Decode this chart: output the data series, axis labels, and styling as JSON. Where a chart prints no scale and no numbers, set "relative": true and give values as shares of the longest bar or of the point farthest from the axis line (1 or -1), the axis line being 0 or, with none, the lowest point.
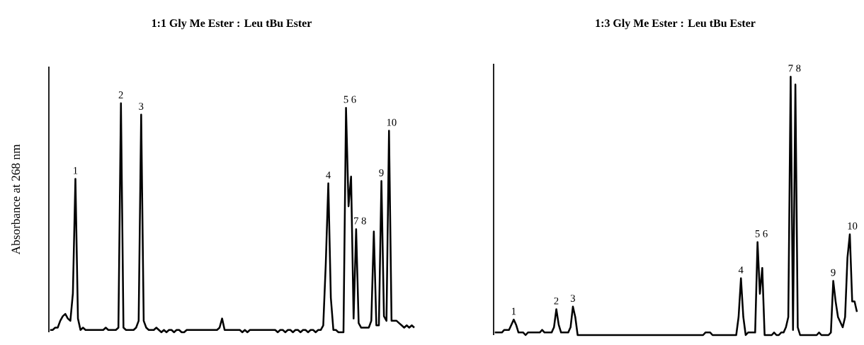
{
  "chart_data": [
    {
      "type": "line",
      "relative": true,
      "title": "1:1 Gly Me Ester : Leu tBu Ester",
      "ylabel": "Absorbance at 268 nm",
      "color": "#000000",
      "categories": [
        null,
        null,
        null,
        null,
        null,
        null,
        null,
        null,
        null,
        null,
        null,
        null,
        null,
        null,
        null,
        null,
        null,
        null,
        null,
        null,
        null,
        null,
        null,
        null,
        null,
        null,
        null,
        null,
        null,
        null,
        null,
        null,
        null,
        null,
        null,
        null,
        null,
        null,
        null,
        null,
        null,
        null,
        null,
        null,
        null,
        null,
        null,
        null,
        null,
        null,
        null,
        null,
        null,
        null,
        null,
        null,
        null,
        null,
        null,
        null,
        null,
        null,
        null,
        null,
        null,
        null,
        null,
        null,
        null,
        null,
        null,
        null,
        null,
        null,
        null,
        null,
        null,
        null,
        null,
        null,
        null,
        null,
        null,
        null,
        null,
        null,
        null,
        null,
        null,
        null,
        null,
        null,
        null,
        null,
        null,
        null,
        null,
        null,
        null,
        null,
        null,
        null,
        null,
        null,
        null,
        null,
        null,
        null,
        null,
        null,
        null,
        null,
        null,
        null,
        null,
        null,
        null,
        null,
        null,
        null,
        null,
        null,
        null,
        null,
        null,
        null,
        null,
        null,
        null,
        null,
        null,
        null,
        null,
        null,
        null,
        null,
        null,
        null,
        null,
        null,
        null,
        null,
        null,
        null,
        null
      ],
      "values": [
        0.01,
        0.01,
        0.02,
        0.02,
        0.05,
        0.07,
        0.08,
        0.06,
        0.05,
        0.17,
        0.67,
        0.06,
        0.01,
        0.02,
        0.01,
        0.01,
        0.01,
        0.01,
        0.01,
        0.01,
        0.01,
        0.01,
        0.02,
        0.01,
        0.01,
        0.01,
        0.01,
        0.02,
        1.0,
        0.02,
        0.01,
        0.01,
        0.01,
        0.01,
        0.02,
        0.05,
        0.95,
        0.05,
        0.02,
        0.01,
        0.01,
        0.01,
        0.02,
        0.01,
        0,
        0.01,
        0,
        0.01,
        0.01,
        0,
        0.01,
        0.01,
        0,
        0,
        0.01,
        0.01,
        0.01,
        0.01,
        0.01,
        0.01,
        0.01,
        0.01,
        0.01,
        0.01,
        0.01,
        0.01,
        0.01,
        0.02,
        0.06,
        0.01,
        0.01,
        0.01,
        0.01,
        0.01,
        0.01,
        0.01,
        0,
        0.01,
        0,
        0.01,
        0.01,
        0.01,
        0.01,
        0.01,
        0.01,
        0.01,
        0.01,
        0.01,
        0.01,
        0.01,
        0,
        0.01,
        0.01,
        0,
        0.01,
        0.01,
        0,
        0.01,
        0.01,
        0,
        0.01,
        0.01,
        0,
        0.01,
        0.01,
        0,
        0.01,
        0.01,
        0.03,
        0.3,
        0.65,
        0.15,
        0.01,
        0.01,
        0,
        0,
        0,
        0.98,
        0.55,
        0.68,
        0.06,
        0.45,
        0.04,
        0.02,
        0.02,
        0.02,
        0.02,
        0.05,
        0.44,
        0.03,
        0.03,
        0.66,
        0.07,
        0.05,
        0.88,
        0.05,
        0.05,
        0.05,
        0.04,
        0.03,
        0.02,
        0.03,
        0.02,
        0.03,
        0.02
      ],
      "annotations": [
        {
          "text": "1",
          "y": 0.67
        },
        {
          "text": "2",
          "y": 1.0
        },
        {
          "text": "3",
          "y": 0.95
        },
        {
          "text": "4",
          "y": 0.65
        },
        {
          "text": "5 6",
          "y": 0.98
        },
        {
          "text": "7 8",
          "y": 0.45
        },
        {
          "text": "9",
          "y": 0.66
        },
        {
          "text": "10",
          "y": 0.88
        }
      ]
    },
    {
      "type": "line",
      "relative": true,
      "title": "1:3 Gly Me Ester : Leu tBu Ester",
      "color": "#000000",
      "categories": [
        null,
        null,
        null,
        null,
        null,
        null,
        null,
        null,
        null,
        null,
        null,
        null,
        null,
        null,
        null,
        null,
        null,
        null,
        null,
        null,
        null,
        null,
        null,
        null,
        null,
        null,
        null,
        null,
        null,
        null,
        null,
        null,
        null,
        null,
        null,
        null,
        null,
        null,
        null,
        null,
        null,
        null,
        null,
        null,
        null,
        null,
        null,
        null,
        null,
        null,
        null,
        null,
        null,
        null,
        null,
        null,
        null,
        null,
        null,
        null,
        null,
        null,
        null,
        null,
        null,
        null,
        null,
        null,
        null,
        null,
        null,
        null,
        null,
        null,
        null,
        null,
        null,
        null,
        null,
        null,
        null,
        null,
        null,
        null,
        null,
        null,
        null,
        null,
        null,
        null,
        null,
        null,
        null,
        null,
        null,
        null,
        null,
        null,
        null,
        null,
        null,
        null,
        null,
        null,
        null,
        null,
        null,
        null,
        null,
        null,
        null,
        null,
        null,
        null,
        null,
        null,
        null,
        null,
        null,
        null,
        null,
        null,
        null,
        null,
        null,
        null,
        null,
        null,
        null,
        null,
        null,
        null,
        null,
        null,
        null,
        null,
        null,
        null,
        null,
        null,
        null,
        null,
        null,
        null,
        null,
        null,
        null,
        null,
        null,
        null,
        null,
        null,
        null,
        null
      ],
      "values": [
        0.01,
        0.01,
        0.01,
        0.01,
        0.02,
        0.02,
        0.02,
        0.04,
        0.06,
        0.04,
        0.01,
        0.01,
        0.01,
        0,
        0.01,
        0.01,
        0.01,
        0.01,
        0.01,
        0.01,
        0.02,
        0.01,
        0.01,
        0.01,
        0.01,
        0.03,
        0.1,
        0.04,
        0.01,
        0.01,
        0.01,
        0.01,
        0.03,
        0.11,
        0.07,
        0,
        0,
        0,
        0,
        0,
        0,
        0,
        0,
        0,
        0,
        0,
        0,
        0,
        0,
        0,
        0,
        0,
        0,
        0,
        0,
        0,
        0,
        0,
        0,
        0,
        0,
        0,
        0,
        0,
        0,
        0,
        0,
        0,
        0,
        0,
        0,
        0,
        0,
        0,
        0,
        0,
        0,
        0,
        0,
        0,
        0,
        0,
        0,
        0,
        0,
        0,
        0,
        0,
        0,
        0.01,
        0.01,
        0.01,
        0,
        0,
        0,
        0,
        0,
        0,
        0,
        0,
        0,
        0,
        0,
        0.07,
        0.22,
        0.07,
        0,
        0.01,
        0.01,
        0.01,
        0.01,
        0.36,
        0.16,
        0.26,
        0,
        0,
        0,
        0,
        0.01,
        0,
        0,
        0.01,
        0.01,
        0.03,
        0.07,
        1.0,
        0.02,
        0.97,
        0.03,
        0,
        0,
        0,
        0,
        0,
        0,
        0,
        0,
        0.01,
        0,
        0,
        0,
        0,
        0.01,
        0.21,
        0.13,
        0.07,
        0.05,
        0.03,
        0.07,
        0.3,
        0.39,
        0.13,
        0.13,
        0.09
      ],
      "annotations": [
        {
          "text": "1",
          "y": 0.06
        },
        {
          "text": "2",
          "y": 0.1
        },
        {
          "text": "3",
          "y": 0.11
        },
        {
          "text": "4",
          "y": 0.22
        },
        {
          "text": "5 6",
          "y": 0.36
        },
        {
          "text": "7 8",
          "y": 1.0
        },
        {
          "text": "9",
          "y": 0.21
        },
        {
          "text": "10",
          "y": 0.39
        }
      ]
    }
  ]
}
